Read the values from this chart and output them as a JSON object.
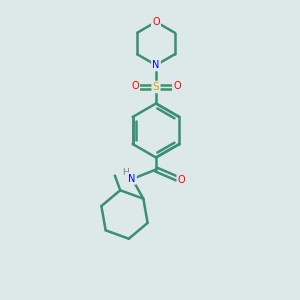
{
  "bg_color": "#dde8e8",
  "bond_color": "#3a9070",
  "bond_width": 1.8,
  "atom_colors": {
    "O": "#ff0000",
    "N": "#0000ff",
    "S": "#ccaa00",
    "C": "#3a9070",
    "H": "#808080"
  },
  "fig_width": 3.0,
  "fig_height": 3.0,
  "dpi": 100
}
